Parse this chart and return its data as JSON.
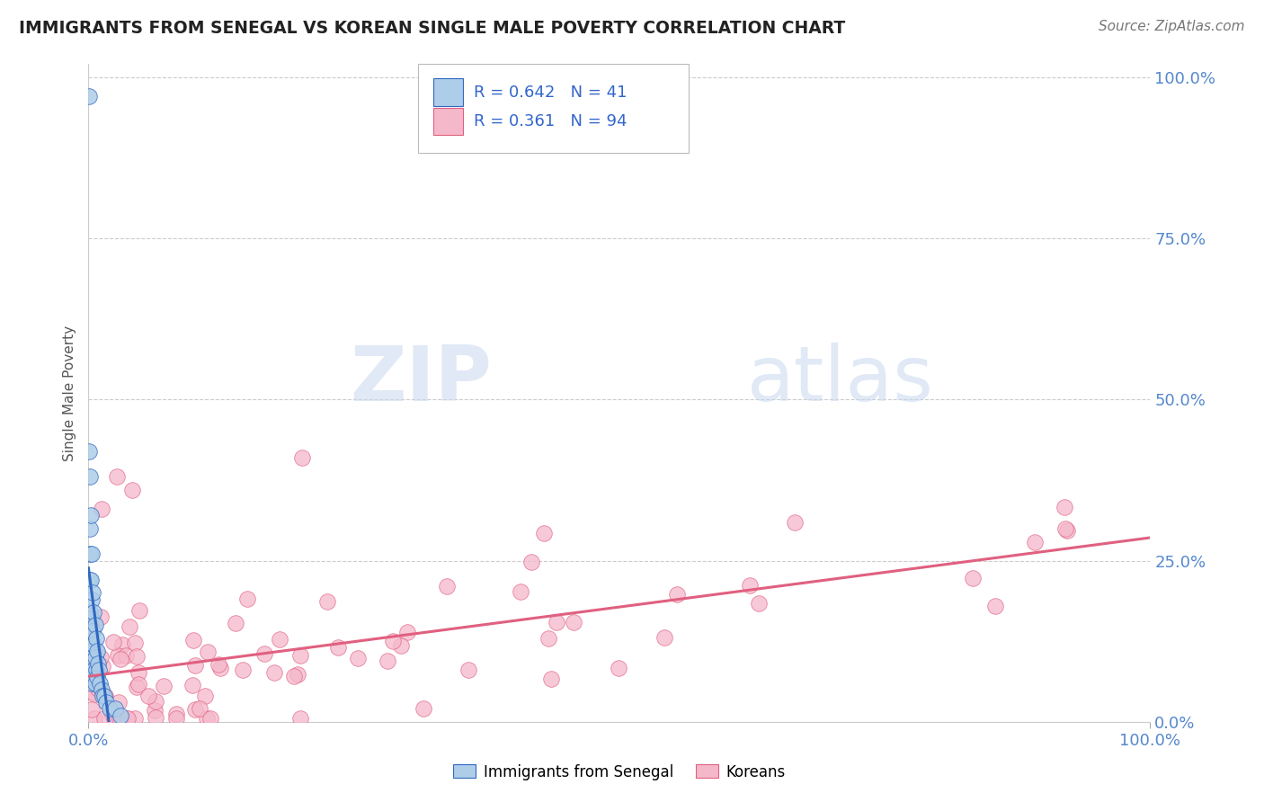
{
  "title": "IMMIGRANTS FROM SENEGAL VS KOREAN SINGLE MALE POVERTY CORRELATION CHART",
  "source": "Source: ZipAtlas.com",
  "ylabel": "Single Male Poverty",
  "ytick_labels": [
    "0.0%",
    "25.0%",
    "50.0%",
    "75.0%",
    "100.0%"
  ],
  "ytick_values": [
    0.0,
    0.25,
    0.5,
    0.75,
    1.0
  ],
  "legend_senegal": "Immigrants from Senegal",
  "legend_korean": "Koreans",
  "R_senegal": 0.642,
  "N_senegal": 41,
  "R_korean": 0.361,
  "N_korean": 94,
  "color_senegal": "#aecde8",
  "color_korean": "#f5b8cb",
  "line_senegal": "#3068c0",
  "line_korean": "#e06080",
  "watermark_zip": "ZIP",
  "watermark_atlas": "atlas",
  "background_color": "#ffffff",
  "title_color": "#222222",
  "source_color": "#777777",
  "axis_label_color": "#555555",
  "tick_color": "#5588cc",
  "grid_color": "#cccccc",
  "legend_text_color": "#3366cc",
  "title_fontsize": 13.5,
  "source_fontsize": 11,
  "tick_fontsize": 13,
  "ylabel_fontsize": 11,
  "legend_fontsize": 13
}
